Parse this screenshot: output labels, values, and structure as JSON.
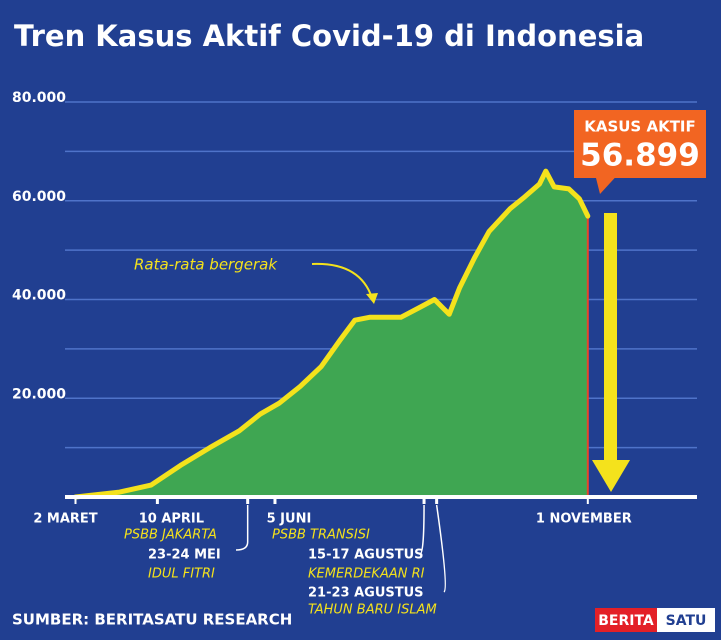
{
  "chart_data": {
    "type": "area",
    "title": "Tren Kasus Aktif Covid-19 di Indonesia",
    "xlim": [
      -5,
      296
    ],
    "xticks": [
      {
        "value": 0,
        "label": "2 MARET"
      },
      {
        "value": 39,
        "label": "10 APRIL"
      },
      {
        "value": 95,
        "label": "5 JUNI"
      },
      {
        "value": 244,
        "label": "1 NOVEMBER"
      }
    ],
    "ylim": [
      0,
      80000
    ],
    "yticks": [
      {
        "value": 20000,
        "label": "20.000"
      },
      {
        "value": 40000,
        "label": "40.000"
      },
      {
        "value": 60000,
        "label": "60.000"
      },
      {
        "value": 80000,
        "label": "80.000"
      }
    ],
    "minor_yticks": [
      10000,
      30000,
      50000,
      70000
    ],
    "grid": true,
    "series": [
      {
        "name": "Rata-rata bergerak",
        "color": "#f4e21c",
        "fill": "#3fa652",
        "x": [
          0,
          21,
          36,
          50,
          64,
          78,
          88,
          97,
          107,
          117,
          126,
          133,
          140,
          155,
          164,
          171,
          178,
          183,
          190,
          197,
          207,
          214,
          221,
          224,
          228,
          235,
          240,
          244
        ],
        "values": [
          0,
          1000,
          2400,
          6400,
          10000,
          13400,
          16800,
          19000,
          22400,
          26400,
          31800,
          35800,
          36400,
          36400,
          38400,
          40000,
          37000,
          42400,
          48400,
          53800,
          58400,
          60800,
          63400,
          66000,
          62800,
          62400,
          60400,
          56899
        ]
      }
    ],
    "callout": {
      "title": "KASUS AKTIF",
      "value": 56899,
      "value_label": "56.899"
    },
    "annotations": [
      {
        "x": 39,
        "text": "PSBB JAKARTA"
      },
      {
        "x": 82,
        "date": "23-24 MEI",
        "text": "IDUL FITRI"
      },
      {
        "x": 95,
        "text": "PSBB TRANSISI"
      },
      {
        "x": 166,
        "date": "15-17 AGUSTUS",
        "text": "KEMERDEKAAN RI"
      },
      {
        "x": 172,
        "date": "21-23 AGUSTUS",
        "text": "TAHUN BARU ISLAM"
      }
    ],
    "source": "SUMBER: BERITASATU RESEARCH",
    "logo": [
      "BERITA",
      "SATU"
    ]
  }
}
